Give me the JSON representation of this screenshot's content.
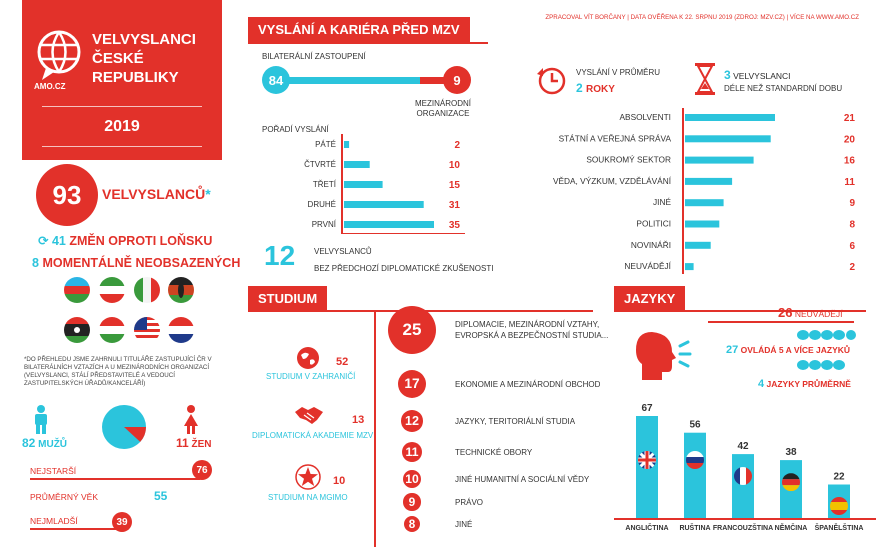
{
  "header": {
    "title": "Velvyslanci České republiky",
    "logo_text": "AMO.CZ",
    "year": "2019",
    "source": "Zpracoval Vít Borčany | Data ověřena k 22. srpnu 2019 (zdroj: MZV.cz) | Více na www.amo.cz"
  },
  "summary": {
    "total": "93",
    "total_label": "velvyslanců",
    "asterisk": "*",
    "changes_num": "41",
    "changes_label": "změn oproti loňsku",
    "vacant_num": "8",
    "vacant_label": "momentálně neobsazených",
    "footnote": "*do přehledu jsme zahrnuli tituláře zastupující ČR v bilaterálních vztazích a u mezinárodních organizací (velvyslanci, stálí představitelé a vedoucí zastupitelských úřadů/kanceláří)",
    "flags": [
      "azerbaijan",
      "iran",
      "italy",
      "kenya",
      "libya",
      "hungary",
      "malaysia",
      "netherlands"
    ]
  },
  "gender": {
    "men_num": "82",
    "men_label": "mužů",
    "women_num": "11",
    "women_label": "žen",
    "men": 82,
    "women": 11
  },
  "age": {
    "oldest_label": "nejstarší",
    "oldest": "76",
    "avg_label": "průměrný věk",
    "avg": "55",
    "youngest_label": "nejmladší",
    "youngest": "39"
  },
  "career": {
    "section_title": "Vyslání a kariéra před MZV",
    "bilateral_label": "bilaterální zastoupení",
    "bilateral": "84",
    "intl_org": "9",
    "intl_org_label": "mezinárodní organizace",
    "order_title": "pořadí vyslání",
    "no_diplomat_num": "12",
    "no_diplomat_label1": "velvyslanců",
    "no_diplomat_label2": "bez předchozí diplomatické zkušenosti",
    "avg_postings_label": "vyslání v průměru",
    "avg_postings": "2",
    "avg_postings_unit": "roky",
    "over_time_num": "3",
    "over_time_label1": "velvyslanci",
    "over_time_label2": "déle než standardní dobu"
  },
  "studies": {
    "section_title": "Studium",
    "abroad_label": "studium v zahraničí",
    "abroad": "52",
    "dipacademy_label": "diplomatická akademie MZV",
    "dipacademy": "13",
    "mgimo_label": "studium na MGIMO",
    "mgimo": "10"
  },
  "languages": {
    "section_title": "Jazyky",
    "not_stated_num": "26",
    "not_stated_label": "neuvádějí",
    "five_plus_num": "27",
    "five_plus_label": "ovládá 5 a více jazyků",
    "avg_num": "4",
    "avg_label": "jazyky průměrně"
  },
  "chart_data": [
    {
      "type": "bar",
      "title": "pořadí vyslání",
      "categories": [
        "páté",
        "čtvrté",
        "třetí",
        "druhé",
        "první"
      ],
      "values": [
        2,
        10,
        15,
        31,
        35
      ]
    },
    {
      "type": "bar",
      "categories": [
        "absolventi",
        "státní a veřejná správa",
        "soukromý sektor",
        "věda, výzkum, vzdělávání",
        "jiné",
        "politici",
        "novináři",
        "neuvádějí"
      ],
      "values": [
        21,
        20,
        16,
        11,
        9,
        8,
        6,
        2
      ]
    },
    {
      "type": "bar",
      "title": "Studium",
      "categories": [
        "diplomacie, mezinárodní vztahy, evropská a bezpečnostní studia...",
        "ekonomie a mezinárodní obchod",
        "jazyky, teritoriální studia",
        "technické obory",
        "jiné humanitní a sociální vědy",
        "právo",
        "jiné"
      ],
      "values": [
        25,
        17,
        12,
        11,
        10,
        9,
        8
      ]
    },
    {
      "type": "bar",
      "title": "Jazyky",
      "categories": [
        "angličtina",
        "ruština",
        "francouzština",
        "němčina",
        "španělština"
      ],
      "values": [
        67,
        56,
        42,
        38,
        22
      ]
    }
  ]
}
